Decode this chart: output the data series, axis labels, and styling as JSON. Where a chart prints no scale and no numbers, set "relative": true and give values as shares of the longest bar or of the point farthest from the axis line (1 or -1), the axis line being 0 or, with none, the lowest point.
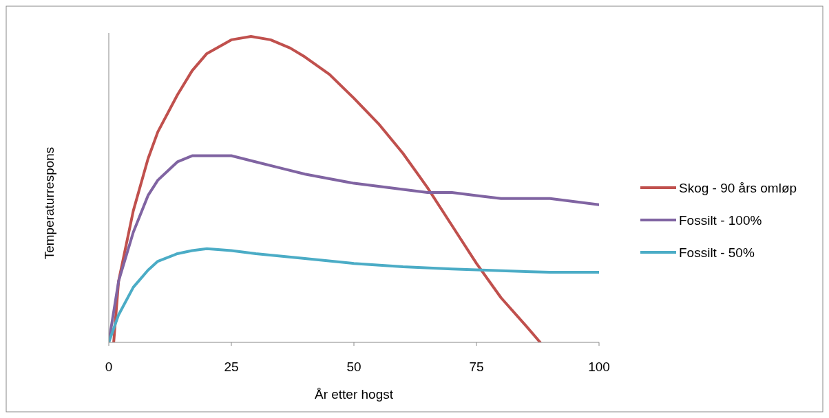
{
  "chart_data": {
    "type": "line",
    "relative": true,
    "xlabel": "År etter hogst",
    "ylabel": "Temperaturrespons",
    "xlim": [
      0,
      100
    ],
    "xticks": [
      0,
      25,
      50,
      75,
      100
    ],
    "legend": "right",
    "marker": "none",
    "line_style": "solid",
    "series": [
      {
        "name": "Skog - 90 års omløp",
        "color": "#c0504d",
        "x": [
          1,
          2,
          5,
          8,
          10,
          14,
          17,
          20,
          25,
          29,
          33,
          37,
          40,
          45,
          50,
          55,
          60,
          65,
          70,
          75,
          80,
          85,
          88
        ],
        "values": [
          0,
          0.2,
          0.43,
          0.6,
          0.688,
          0.809,
          0.888,
          0.944,
          0.989,
          1,
          0.989,
          0.962,
          0.933,
          0.876,
          0.798,
          0.715,
          0.618,
          0.506,
          0.382,
          0.258,
          0.146,
          0.056,
          0
        ]
      },
      {
        "name": "Fossilt - 100%",
        "color": "#8064a2",
        "x": [
          0,
          2,
          5,
          8,
          10,
          14,
          17,
          20,
          25,
          30,
          35,
          40,
          50,
          55,
          60,
          65,
          70,
          75,
          80,
          90,
          100
        ],
        "values": [
          0,
          0.2,
          0.36,
          0.48,
          0.53,
          0.59,
          0.61,
          0.61,
          0.61,
          0.59,
          0.57,
          0.55,
          0.52,
          0.51,
          0.5,
          0.49,
          0.49,
          0.48,
          0.47,
          0.47,
          0.45
        ]
      },
      {
        "name": "Fossilt - 50%",
        "color": "#4bacc6",
        "x": [
          0,
          2,
          5,
          8,
          10,
          14,
          17,
          20,
          25,
          30,
          40,
          50,
          60,
          70,
          80,
          90,
          100
        ],
        "values": [
          0,
          0.09,
          0.18,
          0.236,
          0.265,
          0.29,
          0.3,
          0.306,
          0.3,
          0.29,
          0.274,
          0.258,
          0.247,
          0.24,
          0.234,
          0.229,
          0.229
        ]
      }
    ]
  }
}
